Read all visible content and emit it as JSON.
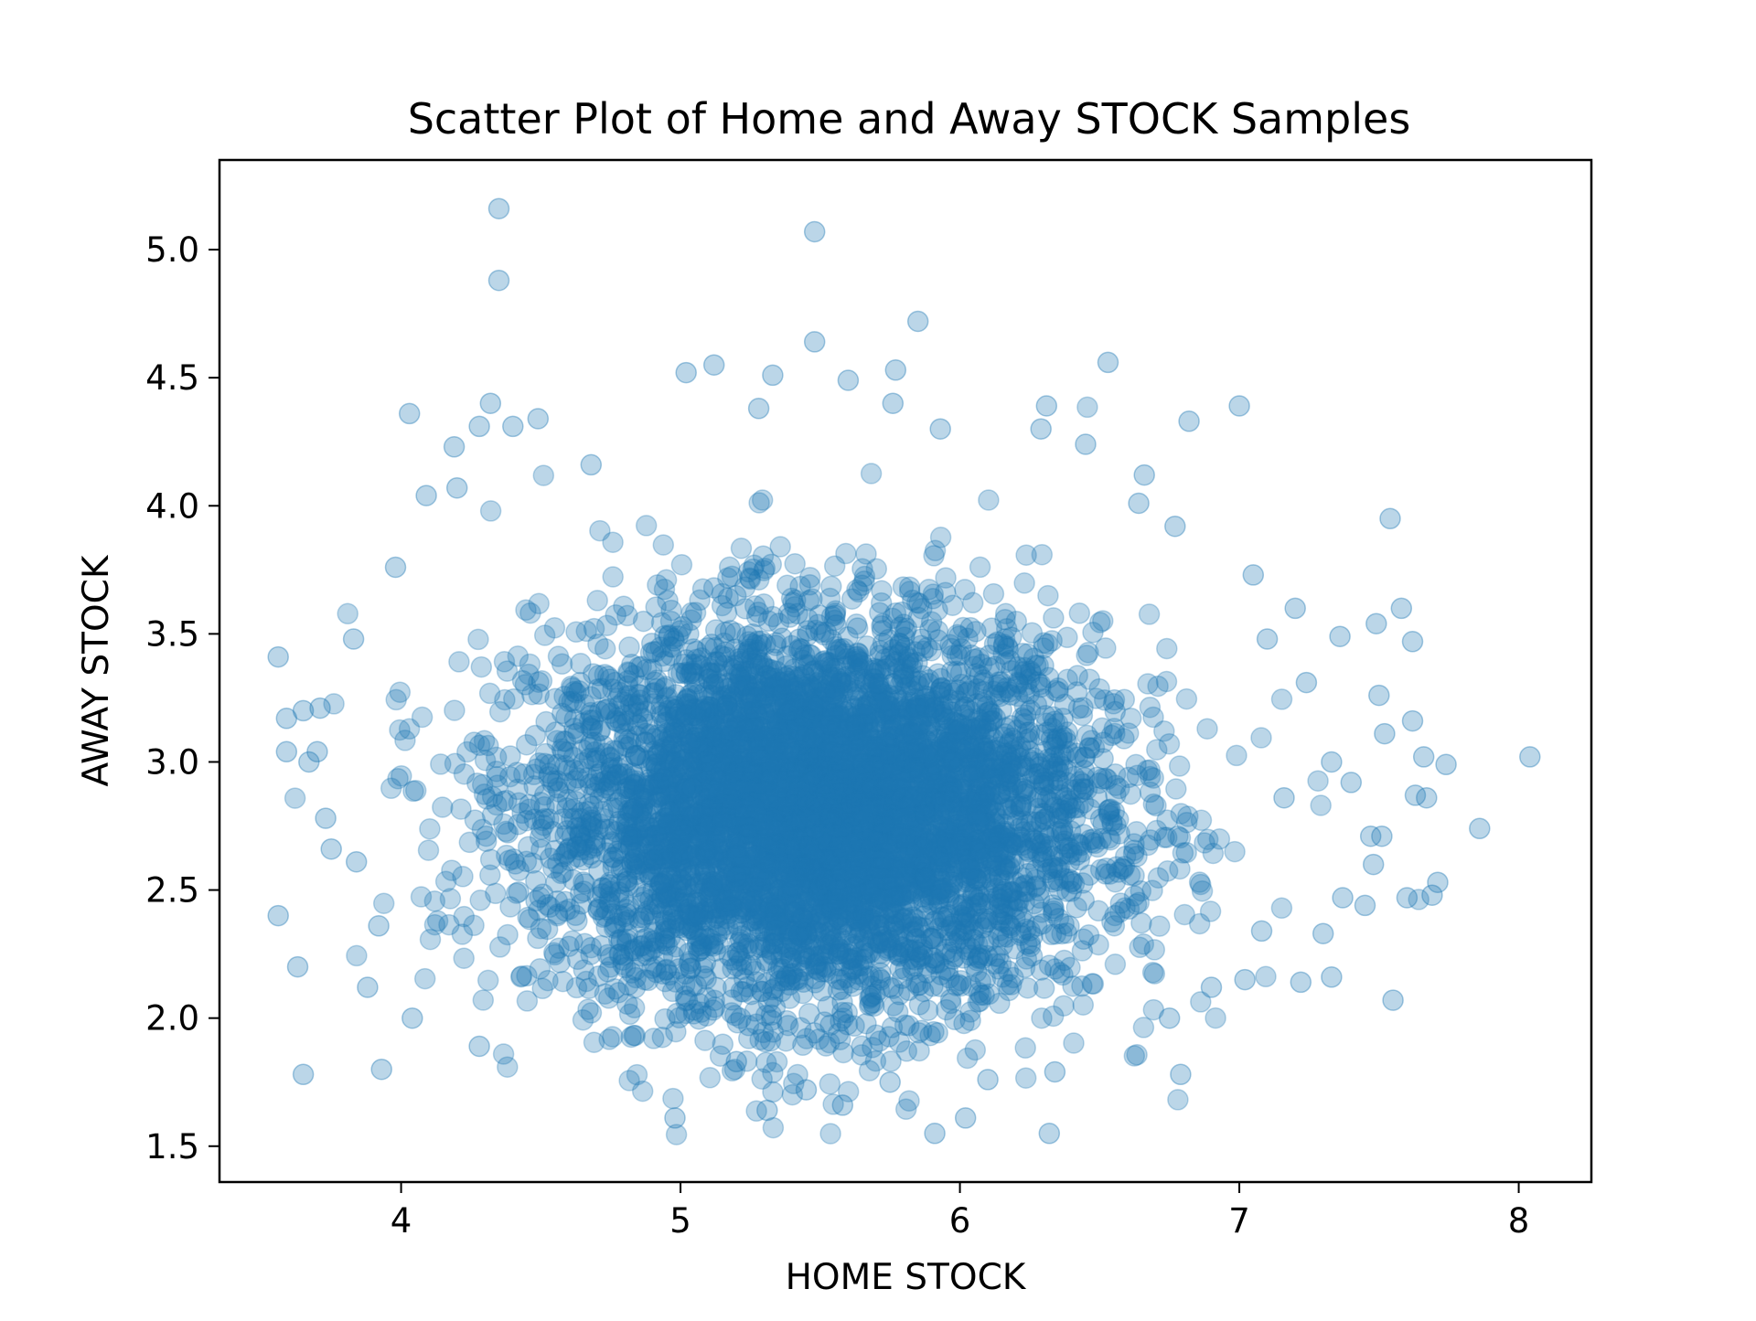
{
  "chart_data": {
    "type": "scatter",
    "title": "Scatter Plot of Home and Away STOCK Samples",
    "xlabel": "HOME STOCK",
    "ylabel": "AWAY STOCK",
    "xlim": [
      3.35,
      8.26
    ],
    "ylim": [
      1.36,
      5.35
    ],
    "xticks": [
      4,
      5,
      6,
      7,
      8
    ],
    "xtick_labels": [
      "4",
      "5",
      "6",
      "7",
      "8"
    ],
    "yticks": [
      1.5,
      2.0,
      2.5,
      3.0,
      3.5,
      4.0,
      4.5,
      5.0
    ],
    "ytick_labels": [
      "1.5",
      "2.0",
      "2.5",
      "3.0",
      "3.5",
      "4.0",
      "4.5",
      "5.0"
    ],
    "grid": false,
    "legend": "none",
    "marker_color": "#1f77b4",
    "marker_alpha": 0.3,
    "core_distribution": {
      "x_mean": 5.5,
      "x_std": 0.5,
      "y_mean": 2.8,
      "y_std": 0.37
    },
    "points": [
      [
        4.35,
        5.16
      ],
      [
        5.48,
        5.07
      ],
      [
        4.35,
        4.88
      ],
      [
        5.85,
        4.72
      ],
      [
        5.48,
        4.64
      ],
      [
        6.53,
        4.56
      ],
      [
        5.12,
        4.55
      ],
      [
        5.02,
        4.52
      ],
      [
        5.77,
        4.53
      ],
      [
        5.33,
        4.51
      ],
      [
        5.6,
        4.49
      ],
      [
        4.03,
        4.36
      ],
      [
        4.32,
        4.4
      ],
      [
        4.49,
        4.34
      ],
      [
        5.28,
        4.38
      ],
      [
        5.76,
        4.4
      ],
      [
        6.31,
        4.39
      ],
      [
        7.0,
        4.39
      ],
      [
        6.82,
        4.33
      ],
      [
        4.28,
        4.31
      ],
      [
        4.4,
        4.31
      ],
      [
        6.29,
        4.3
      ],
      [
        5.93,
        4.3
      ],
      [
        4.19,
        4.23
      ],
      [
        6.45,
        4.24
      ],
      [
        4.68,
        4.16
      ],
      [
        6.66,
        4.12
      ],
      [
        4.09,
        4.04
      ],
      [
        4.2,
        4.07
      ],
      [
        7.54,
        3.95
      ],
      [
        3.98,
        3.76
      ],
      [
        3.56,
        3.41
      ],
      [
        3.83,
        3.48
      ],
      [
        3.59,
        3.17
      ],
      [
        3.65,
        3.2
      ],
      [
        3.71,
        3.21
      ],
      [
        3.59,
        3.04
      ],
      [
        3.67,
        3.0
      ],
      [
        3.7,
        3.04
      ],
      [
        3.73,
        2.78
      ],
      [
        3.75,
        2.66
      ],
      [
        3.84,
        2.61
      ],
      [
        3.92,
        2.36
      ],
      [
        3.56,
        2.4
      ],
      [
        3.63,
        2.2
      ],
      [
        3.88,
        2.12
      ],
      [
        3.65,
        1.78
      ],
      [
        3.93,
        1.8
      ],
      [
        4.04,
        2.0
      ],
      [
        4.28,
        1.89
      ],
      [
        4.98,
        1.61
      ],
      [
        5.31,
        1.64
      ],
      [
        5.58,
        1.66
      ],
      [
        5.91,
        1.55
      ],
      [
        6.02,
        1.61
      ],
      [
        6.32,
        1.55
      ],
      [
        5.2,
        1.83
      ],
      [
        5.45,
        1.72
      ],
      [
        5.75,
        1.75
      ],
      [
        6.1,
        1.76
      ],
      [
        6.34,
        1.79
      ],
      [
        6.79,
        1.78
      ],
      [
        6.75,
        2.0
      ],
      [
        6.9,
        2.12
      ],
      [
        7.22,
        2.14
      ],
      [
        7.33,
        2.16
      ],
      [
        7.55,
        2.07
      ],
      [
        7.02,
        2.15
      ],
      [
        7.08,
        2.34
      ],
      [
        7.3,
        2.33
      ],
      [
        7.45,
        2.44
      ],
      [
        7.6,
        2.47
      ],
      [
        7.69,
        2.48
      ],
      [
        7.71,
        2.53
      ],
      [
        7.48,
        2.6
      ],
      [
        7.51,
        2.71
      ],
      [
        7.67,
        2.86
      ],
      [
        7.63,
        2.87
      ],
      [
        7.66,
        3.02
      ],
      [
        7.74,
        2.99
      ],
      [
        7.86,
        2.74
      ],
      [
        8.04,
        3.02
      ],
      [
        7.62,
        3.16
      ],
      [
        7.52,
        3.11
      ],
      [
        7.5,
        3.26
      ],
      [
        7.62,
        3.47
      ],
      [
        7.58,
        3.6
      ],
      [
        7.49,
        3.54
      ],
      [
        7.36,
        3.49
      ],
      [
        7.2,
        3.6
      ],
      [
        7.05,
        3.73
      ],
      [
        7.33,
        3.0
      ],
      [
        7.4,
        2.92
      ],
      [
        7.47,
        2.71
      ],
      [
        7.37,
        2.47
      ],
      [
        7.1,
        3.48
      ],
      [
        7.24,
        3.31
      ],
      [
        7.16,
        2.86
      ],
      [
        6.64,
        4.01
      ],
      [
        6.77,
        3.92
      ]
    ]
  }
}
